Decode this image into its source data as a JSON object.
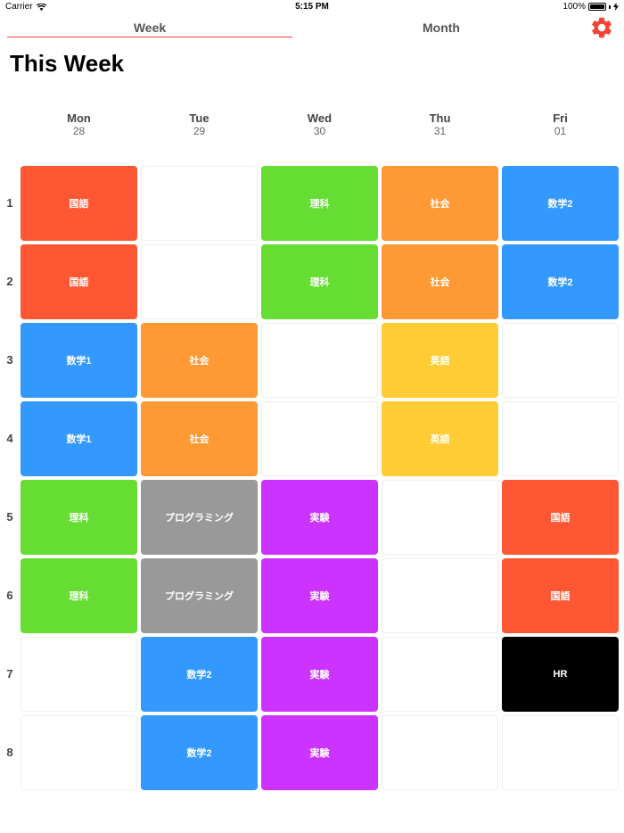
{
  "status_bar": {
    "carrier": "Carrier",
    "time": "5:15 PM",
    "battery": "100%"
  },
  "tabs": [
    {
      "label": "Week"
    },
    {
      "label": "Month"
    }
  ],
  "title": "This Week",
  "days": [
    {
      "name": "Mon",
      "date": "28"
    },
    {
      "name": "Tue",
      "date": "29"
    },
    {
      "name": "Wed",
      "date": "30"
    },
    {
      "name": "Thu",
      "date": "31"
    },
    {
      "name": "Fri",
      "date": "01"
    }
  ],
  "periods": [
    "1",
    "2",
    "3",
    "4",
    "5",
    "6",
    "7",
    "8"
  ],
  "subject_colors": {
    "国語": "#ff5733",
    "理科": "#66dd33",
    "社会": "#ff9933",
    "数学2": "#3399ff",
    "数学1": "#3399ff",
    "英語": "#ffcc33",
    "プログラミング": "#999999",
    "実験": "#cc33ff",
    "HR": "#000000"
  },
  "timetable": [
    [
      "国語",
      "",
      "理科",
      "社会",
      "数学2"
    ],
    [
      "国語",
      "",
      "理科",
      "社会",
      "数学2"
    ],
    [
      "数学1",
      "社会",
      "",
      "英語",
      ""
    ],
    [
      "数学1",
      "社会",
      "",
      "英語",
      ""
    ],
    [
      "理科",
      "プログラミング",
      "実験",
      "",
      "国語"
    ],
    [
      "理科",
      "プログラミング",
      "実験",
      "",
      "国語"
    ],
    [
      "",
      "数学2",
      "実験",
      "",
      "HR"
    ],
    [
      "",
      "数学2",
      "実験",
      "",
      ""
    ]
  ]
}
